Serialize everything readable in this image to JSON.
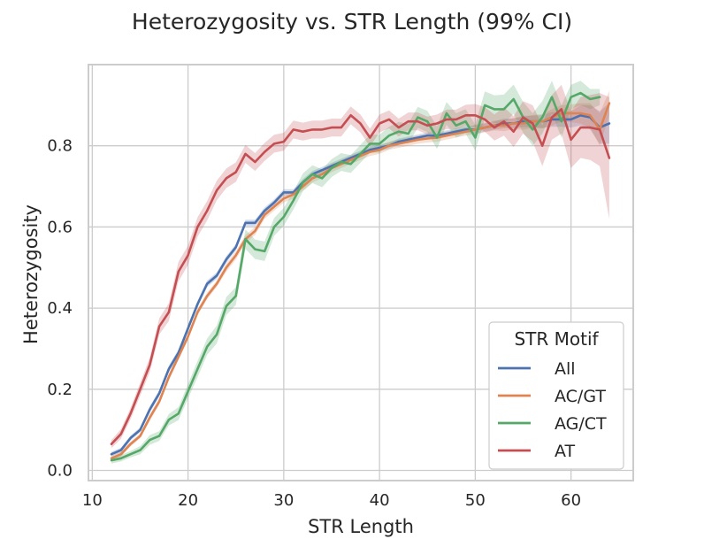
{
  "chart_data": {
    "type": "line",
    "title": "Heterozygosity vs. STR Length (99% CI)",
    "xlabel": "STR Length",
    "ylabel": "Heterozygosity",
    "xlim": [
      9.6,
      66.5
    ],
    "ylim": [
      -0.025,
      1.0
    ],
    "xticks": [
      10,
      20,
      30,
      40,
      50,
      60
    ],
    "yticks": [
      0.0,
      0.2,
      0.4,
      0.6,
      0.8
    ],
    "xtick_labels": [
      "10",
      "20",
      "30",
      "40",
      "50",
      "60"
    ],
    "ytick_labels": [
      "0.0",
      "0.2",
      "0.4",
      "0.6",
      "0.8"
    ],
    "grid": true,
    "legend": {
      "title": "STR Motif",
      "placement": "lower-right"
    },
    "series": [
      {
        "name": "All",
        "color": "#4c72b0",
        "x": [
          12,
          13,
          14,
          15,
          16,
          17,
          18,
          19,
          20,
          21,
          22,
          23,
          24,
          25,
          26,
          27,
          28,
          29,
          30,
          31,
          32,
          33,
          34,
          35,
          36,
          37,
          38,
          39,
          40,
          41,
          42,
          43,
          44,
          45,
          46,
          47,
          48,
          49,
          50,
          51,
          52,
          53,
          54,
          55,
          56,
          57,
          58,
          59,
          60,
          61,
          62,
          63,
          64
        ],
        "y": [
          0.04,
          0.05,
          0.08,
          0.1,
          0.15,
          0.19,
          0.25,
          0.29,
          0.35,
          0.41,
          0.46,
          0.48,
          0.52,
          0.55,
          0.61,
          0.61,
          0.64,
          0.66,
          0.685,
          0.685,
          0.71,
          0.73,
          0.74,
          0.75,
          0.76,
          0.77,
          0.78,
          0.79,
          0.795,
          0.8,
          0.81,
          0.815,
          0.82,
          0.825,
          0.825,
          0.83,
          0.835,
          0.84,
          0.84,
          0.845,
          0.85,
          0.855,
          0.855,
          0.86,
          0.86,
          0.86,
          0.865,
          0.865,
          0.865,
          0.875,
          0.87,
          0.845,
          0.855
        ],
        "ci": [
          0.006,
          0.006,
          0.006,
          0.006,
          0.008,
          0.008,
          0.008,
          0.008,
          0.008,
          0.008,
          0.008,
          0.008,
          0.008,
          0.008,
          0.008,
          0.008,
          0.008,
          0.008,
          0.008,
          0.008,
          0.008,
          0.008,
          0.008,
          0.008,
          0.008,
          0.008,
          0.008,
          0.008,
          0.008,
          0.008,
          0.008,
          0.008,
          0.008,
          0.008,
          0.008,
          0.008,
          0.008,
          0.008,
          0.01,
          0.01,
          0.01,
          0.012,
          0.012,
          0.014,
          0.014,
          0.016,
          0.018,
          0.018,
          0.02,
          0.025,
          0.03,
          0.04,
          0.05
        ]
      },
      {
        "name": "AC/GT",
        "color": "#dd8452",
        "x": [
          12,
          13,
          14,
          15,
          16,
          17,
          18,
          19,
          20,
          21,
          22,
          23,
          24,
          25,
          26,
          27,
          28,
          29,
          30,
          31,
          32,
          33,
          34,
          35,
          36,
          37,
          38,
          39,
          40,
          41,
          42,
          43,
          44,
          45,
          46,
          47,
          48,
          49,
          50,
          51,
          52,
          53,
          54,
          55,
          56,
          57,
          58,
          59,
          60,
          61,
          62,
          63,
          64
        ],
        "y": [
          0.03,
          0.04,
          0.065,
          0.085,
          0.13,
          0.17,
          0.23,
          0.28,
          0.33,
          0.39,
          0.43,
          0.46,
          0.5,
          0.53,
          0.57,
          0.59,
          0.63,
          0.65,
          0.67,
          0.68,
          0.7,
          0.72,
          0.73,
          0.745,
          0.755,
          0.765,
          0.775,
          0.785,
          0.79,
          0.8,
          0.805,
          0.81,
          0.815,
          0.818,
          0.82,
          0.825,
          0.83,
          0.835,
          0.84,
          0.845,
          0.85,
          0.85,
          0.855,
          0.855,
          0.86,
          0.86,
          0.87,
          0.88,
          0.88,
          0.88,
          0.875,
          0.84,
          0.905
        ],
        "ci": [
          0.006,
          0.006,
          0.006,
          0.006,
          0.008,
          0.008,
          0.008,
          0.008,
          0.008,
          0.008,
          0.008,
          0.008,
          0.01,
          0.01,
          0.01,
          0.01,
          0.01,
          0.01,
          0.01,
          0.01,
          0.01,
          0.01,
          0.01,
          0.01,
          0.01,
          0.01,
          0.01,
          0.01,
          0.01,
          0.01,
          0.01,
          0.01,
          0.01,
          0.01,
          0.01,
          0.01,
          0.01,
          0.01,
          0.012,
          0.012,
          0.012,
          0.014,
          0.014,
          0.016,
          0.016,
          0.018,
          0.02,
          0.02,
          0.022,
          0.025,
          0.03,
          0.04,
          0.03
        ]
      },
      {
        "name": "AG/CT",
        "color": "#55a868",
        "x": [
          12,
          13,
          14,
          15,
          16,
          17,
          18,
          19,
          20,
          21,
          22,
          23,
          24,
          25,
          26,
          27,
          28,
          29,
          30,
          31,
          32,
          33,
          34,
          35,
          36,
          37,
          38,
          39,
          40,
          41,
          42,
          43,
          44,
          45,
          46,
          47,
          48,
          49,
          50,
          51,
          52,
          53,
          54,
          55,
          56,
          57,
          58,
          59,
          60,
          61,
          62,
          63
        ],
        "y": [
          0.025,
          0.03,
          0.04,
          0.05,
          0.075,
          0.085,
          0.125,
          0.14,
          0.195,
          0.25,
          0.305,
          0.335,
          0.405,
          0.43,
          0.57,
          0.545,
          0.54,
          0.6,
          0.625,
          0.665,
          0.71,
          0.73,
          0.72,
          0.745,
          0.76,
          0.755,
          0.78,
          0.805,
          0.805,
          0.825,
          0.835,
          0.83,
          0.87,
          0.86,
          0.82,
          0.88,
          0.85,
          0.86,
          0.82,
          0.9,
          0.89,
          0.89,
          0.915,
          0.87,
          0.84,
          0.87,
          0.92,
          0.86,
          0.92,
          0.93,
          0.915,
          0.92
        ],
        "ci": [
          0.008,
          0.008,
          0.008,
          0.01,
          0.012,
          0.012,
          0.014,
          0.016,
          0.018,
          0.02,
          0.02,
          0.022,
          0.022,
          0.022,
          0.024,
          0.024,
          0.024,
          0.022,
          0.022,
          0.022,
          0.022,
          0.022,
          0.022,
          0.022,
          0.022,
          0.022,
          0.022,
          0.022,
          0.022,
          0.022,
          0.024,
          0.024,
          0.026,
          0.026,
          0.028,
          0.028,
          0.03,
          0.03,
          0.032,
          0.034,
          0.034,
          0.036,
          0.036,
          0.038,
          0.04,
          0.04,
          0.04,
          0.04,
          0.03,
          0.03,
          0.025,
          0.02
        ]
      },
      {
        "name": "AT",
        "color": "#c44e52",
        "x": [
          12,
          13,
          14,
          15,
          16,
          17,
          18,
          19,
          20,
          21,
          22,
          23,
          24,
          25,
          26,
          27,
          28,
          29,
          30,
          31,
          32,
          33,
          34,
          35,
          36,
          37,
          38,
          39,
          40,
          41,
          42,
          43,
          44,
          45,
          46,
          47,
          48,
          49,
          50,
          51,
          52,
          53,
          54,
          55,
          56,
          57,
          58,
          59,
          60,
          61,
          62,
          63,
          64
        ],
        "y": [
          0.065,
          0.09,
          0.14,
          0.2,
          0.26,
          0.355,
          0.39,
          0.49,
          0.53,
          0.6,
          0.64,
          0.69,
          0.72,
          0.735,
          0.78,
          0.76,
          0.785,
          0.805,
          0.81,
          0.84,
          0.835,
          0.84,
          0.84,
          0.845,
          0.845,
          0.875,
          0.855,
          0.82,
          0.855,
          0.865,
          0.845,
          0.86,
          0.86,
          0.85,
          0.855,
          0.865,
          0.865,
          0.875,
          0.875,
          0.865,
          0.845,
          0.86,
          0.835,
          0.87,
          0.855,
          0.8,
          0.87,
          0.89,
          0.815,
          0.845,
          0.845,
          0.84,
          0.77
        ],
        "ci": [
          0.01,
          0.012,
          0.014,
          0.016,
          0.018,
          0.02,
          0.022,
          0.024,
          0.024,
          0.024,
          0.024,
          0.024,
          0.024,
          0.024,
          0.022,
          0.022,
          0.022,
          0.022,
          0.022,
          0.022,
          0.022,
          0.022,
          0.022,
          0.022,
          0.022,
          0.022,
          0.022,
          0.022,
          0.022,
          0.022,
          0.022,
          0.022,
          0.022,
          0.022,
          0.022,
          0.024,
          0.024,
          0.026,
          0.028,
          0.03,
          0.032,
          0.035,
          0.038,
          0.04,
          0.045,
          0.05,
          0.055,
          0.06,
          0.07,
          0.075,
          0.08,
          0.09,
          0.15
        ]
      }
    ]
  }
}
